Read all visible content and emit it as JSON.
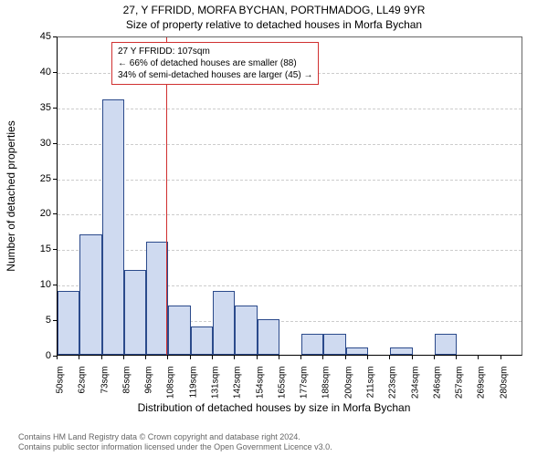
{
  "titles": {
    "line1": "27, Y FFRIDD, MORFA BYCHAN, PORTHMADOG, LL49 9YR",
    "line2": "Size of property relative to detached houses in Morfa Bychan"
  },
  "chart": {
    "type": "histogram",
    "ylabel": "Number of detached properties",
    "xlabel": "Distribution of detached houses by size in Morfa Bychan",
    "ylim": [
      0,
      45
    ],
    "yticks": [
      0,
      5,
      10,
      15,
      20,
      25,
      30,
      35,
      40,
      45
    ],
    "xtick_labels": [
      "50sqm",
      "62sqm",
      "73sqm",
      "85sqm",
      "96sqm",
      "108sqm",
      "119sqm",
      "131sqm",
      "142sqm",
      "154sqm",
      "165sqm",
      "177sqm",
      "188sqm",
      "200sqm",
      "211sqm",
      "223sqm",
      "234sqm",
      "246sqm",
      "257sqm",
      "269sqm",
      "280sqm"
    ],
    "bar_values": [
      9,
      17,
      36,
      12,
      16,
      7,
      4,
      9,
      7,
      5,
      0,
      3,
      3,
      1,
      0,
      1,
      0,
      3,
      0,
      0
    ],
    "bar_fill": "#cfdaf0",
    "bar_border": "#2b4a8b",
    "grid_color": "#cccccc",
    "background_color": "#ffffff",
    "marker": {
      "x_index_position": 4.92,
      "color": "#d03030"
    },
    "title_fontsize": 12,
    "label_fontsize": 12,
    "tick_fontsize": 10
  },
  "annotation": {
    "line1": "27 Y FFRIDD: 107sqm",
    "line2": "← 66% of detached houses are smaller (88)",
    "line3": "34% of semi-detached houses are larger (45) →",
    "border_color": "#d03030"
  },
  "footer": {
    "line1": "Contains HM Land Registry data © Crown copyright and database right 2024.",
    "line2": "Contains public sector information licensed under the Open Government Licence v3.0."
  }
}
